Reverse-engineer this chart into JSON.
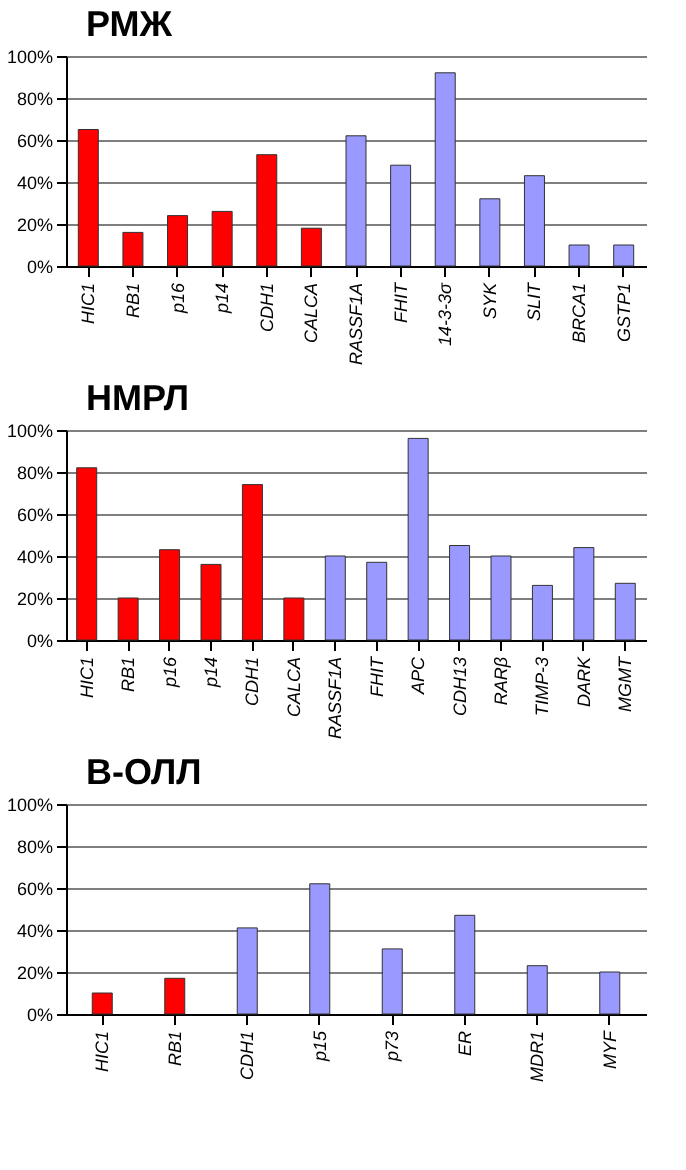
{
  "chart_data": [
    {
      "type": "bar",
      "title": "РМЖ",
      "categories": [
        "HIC1",
        "RB1",
        "p16",
        "p14",
        "CDH1",
        "CALCA",
        "RASSF1A",
        "FHIT",
        "14-3-3σ",
        "SYK",
        "SLIT",
        "BRCA1",
        "GSTP1"
      ],
      "values": [
        65,
        16,
        24,
        26,
        53,
        18,
        62,
        48,
        92,
        32,
        43,
        10,
        10
      ],
      "colors": [
        "#ff0000",
        "#ff0000",
        "#ff0000",
        "#ff0000",
        "#ff0000",
        "#ff0000",
        "#9999ff",
        "#9999ff",
        "#9999ff",
        "#9999ff",
        "#9999ff",
        "#9999ff",
        "#9999ff"
      ],
      "ylim": [
        0,
        100
      ],
      "yticks": [
        {
          "value": 0,
          "label": "0%"
        },
        {
          "value": 20,
          "label": "20%"
        },
        {
          "value": 40,
          "label": "40%"
        },
        {
          "value": 60,
          "label": "60%"
        },
        {
          "value": 80,
          "label": "80%"
        },
        {
          "value": 100,
          "label": "100%"
        }
      ],
      "grid": "y"
    },
    {
      "type": "bar",
      "title": "НМРЛ",
      "categories": [
        "HIC1",
        "RB1",
        "p16",
        "p14",
        "CDH1",
        "CALCA",
        "RASSF1A",
        "FHIT",
        "APC",
        "CDH13",
        "RARβ",
        "TIMP-3",
        "DARK",
        "MGMT"
      ],
      "values": [
        82,
        20,
        43,
        36,
        74,
        20,
        40,
        37,
        96,
        45,
        40,
        26,
        44,
        27
      ],
      "colors": [
        "#ff0000",
        "#ff0000",
        "#ff0000",
        "#ff0000",
        "#ff0000",
        "#ff0000",
        "#9999ff",
        "#9999ff",
        "#9999ff",
        "#9999ff",
        "#9999ff",
        "#9999ff",
        "#9999ff",
        "#9999ff"
      ],
      "ylim": [
        0,
        100
      ],
      "yticks": [
        {
          "value": 0,
          "label": "0%"
        },
        {
          "value": 20,
          "label": "20%"
        },
        {
          "value": 40,
          "label": "40%"
        },
        {
          "value": 60,
          "label": "60%"
        },
        {
          "value": 80,
          "label": "80%"
        },
        {
          "value": 100,
          "label": "100%"
        }
      ],
      "grid": "y"
    },
    {
      "type": "bar",
      "title": "В-ОЛЛ",
      "categories": [
        "HIC1",
        "RB1",
        "CDH1",
        "p15",
        "p73",
        "ER",
        "MDR1",
        "MYF"
      ],
      "values": [
        10,
        17,
        41,
        62,
        31,
        47,
        23,
        20
      ],
      "colors": [
        "#ff0000",
        "#ff0000",
        "#9999ff",
        "#9999ff",
        "#9999ff",
        "#9999ff",
        "#9999ff",
        "#9999ff"
      ],
      "ylim": [
        0,
        100
      ],
      "yticks": [
        {
          "value": 0,
          "label": "0%"
        },
        {
          "value": 20,
          "label": "20%"
        },
        {
          "value": 40,
          "label": "40%"
        },
        {
          "value": 60,
          "label": "60%"
        },
        {
          "value": 80,
          "label": "80%"
        },
        {
          "value": 100,
          "label": "100%"
        }
      ],
      "grid": "y"
    }
  ]
}
